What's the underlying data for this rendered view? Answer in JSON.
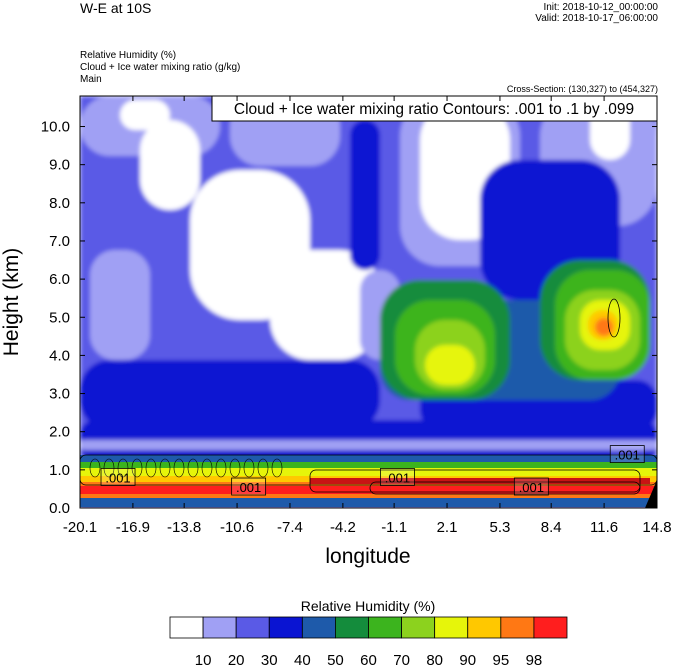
{
  "header": {
    "title": "W-E at 10S",
    "init": "Init: 2018-10-12_00:00:00",
    "valid": "Valid: 2018-10-17_06:00:00",
    "fields": [
      "Relative Humidity   (%)",
      "Cloud + Ice water mixing ratio   (g/kg)",
      "Main"
    ],
    "cross_section": "Cross-Section: (130,327) to (454,327)"
  },
  "chart_data": {
    "type": "heatmap",
    "title": "Cloud + Ice water mixing ratio Contours: .001 to .1 by .099",
    "xlabel": "longitude",
    "ylabel": "Height (km)",
    "xlim": [
      -20.1,
      14.8
    ],
    "ylim": [
      0.0,
      10.8
    ],
    "x_ticks": [
      "-20.1",
      "-16.9",
      "-13.8",
      "-10.6",
      "-7.4",
      "-4.2",
      "-1.1",
      "2.1",
      "5.3",
      "8.4",
      "11.6",
      "14.8"
    ],
    "y_ticks": [
      "0.0",
      "1.0",
      "2.0",
      "3.0",
      "4.0",
      "5.0",
      "6.0",
      "7.0",
      "8.0",
      "9.0",
      "10.0"
    ],
    "contour_labels": [
      {
        "text": ".001",
        "x": -17.8,
        "y": 0.8
      },
      {
        "text": ".001",
        "x": -9.9,
        "y": 0.55
      },
      {
        "text": ".001",
        "x": -0.9,
        "y": 0.8
      },
      {
        "text": ".001",
        "x": 7.2,
        "y": 0.55
      },
      {
        "text": ".001",
        "x": 13.0,
        "y": 1.4
      }
    ],
    "colorbar": {
      "title": "Relative Humidity  (%)",
      "levels": [
        "10",
        "20",
        "30",
        "40",
        "50",
        "60",
        "70",
        "80",
        "90",
        "95",
        "98"
      ],
      "colors": [
        "#ffffff",
        "#a0a0f4",
        "#5a5ae6",
        "#0a14d2",
        "#1e5aaa",
        "#148c3c",
        "#3cb41e",
        "#8cd21e",
        "#e6f50a",
        "#ffc800",
        "#ff7814",
        "#ff1e1e"
      ]
    }
  }
}
